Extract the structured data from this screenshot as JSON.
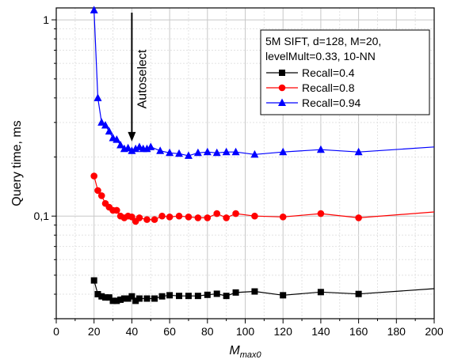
{
  "chart_data": {
    "type": "line",
    "xlabel": "M",
    "xlabel_sub": "max0",
    "ylabel": "Query time, ms",
    "xlim": [
      0,
      200
    ],
    "ylim": [
      0.03,
      1.15
    ],
    "y_scale": "log",
    "grid": true,
    "x_ticks": [
      0,
      20,
      40,
      60,
      80,
      100,
      120,
      140,
      160,
      180,
      200
    ],
    "x_tick_labels": [
      "0",
      "20",
      "40",
      "60",
      "80",
      "100",
      "120",
      "140",
      "160",
      "180",
      "200"
    ],
    "y_ticks": [
      0.1,
      1
    ],
    "y_tick_labels": [
      "0,1",
      "1"
    ],
    "legend": {
      "placement": "top-right",
      "header_line1": "5M SIFT, d=128, M=20,",
      "header_line2": "levelMult=0.33, 10-NN"
    },
    "annotation": {
      "text": "Autoselect",
      "x": 40,
      "y": 0.24
    },
    "series": [
      {
        "name": "Recall=0.4",
        "color": "#000000",
        "marker": "square",
        "x": [
          20,
          22,
          24,
          26,
          28,
          30,
          32,
          34,
          36,
          38,
          40,
          42,
          44,
          48,
          52,
          56,
          60,
          65,
          70,
          75,
          80,
          85,
          90,
          95,
          105,
          120,
          140,
          160
        ],
        "y": [
          0.047,
          0.04,
          0.039,
          0.0385,
          0.0385,
          0.037,
          0.037,
          0.0375,
          0.038,
          0.038,
          0.039,
          0.037,
          0.038,
          0.038,
          0.038,
          0.039,
          0.0395,
          0.0392,
          0.0392,
          0.0392,
          0.0397,
          0.0402,
          0.0392,
          0.0408,
          0.0413,
          0.0395,
          0.041,
          0.0401
        ],
        "line_x": [
          160,
          200
        ],
        "line_y": [
          0.0401,
          0.0427
        ]
      },
      {
        "name": "Recall=0.8",
        "color": "#ff0000",
        "marker": "circle",
        "x": [
          20,
          22,
          24,
          26,
          28,
          30,
          32,
          34,
          36,
          38,
          40,
          42,
          44,
          48,
          52,
          56,
          60,
          65,
          70,
          75,
          80,
          85,
          90,
          95,
          105,
          120,
          140,
          160
        ],
        "y": [
          0.16,
          0.135,
          0.127,
          0.116,
          0.111,
          0.107,
          0.107,
          0.1,
          0.098,
          0.1,
          0.099,
          0.094,
          0.098,
          0.096,
          0.096,
          0.1,
          0.099,
          0.1,
          0.099,
          0.098,
          0.098,
          0.103,
          0.098,
          0.103,
          0.1,
          0.099,
          0.103,
          0.098
        ],
        "line_x": [
          160,
          200
        ],
        "line_y": [
          0.098,
          0.105
        ]
      },
      {
        "name": "Recall=0.94",
        "color": "#0000ff",
        "marker": "triangle",
        "x": [
          20,
          22,
          24,
          26,
          28,
          30,
          32,
          34,
          36,
          38,
          40,
          42,
          44,
          46,
          48,
          50,
          55,
          60,
          65,
          70,
          75,
          80,
          85,
          90,
          95,
          105,
          120,
          140,
          160
        ],
        "y": [
          1.12,
          0.4,
          0.3,
          0.29,
          0.27,
          0.25,
          0.245,
          0.23,
          0.22,
          0.222,
          0.215,
          0.22,
          0.225,
          0.22,
          0.22,
          0.225,
          0.215,
          0.21,
          0.208,
          0.203,
          0.21,
          0.212,
          0.21,
          0.212,
          0.212,
          0.206,
          0.212,
          0.218,
          0.212
        ],
        "line_x": [
          160,
          200
        ],
        "line_y": [
          0.212,
          0.225
        ]
      }
    ]
  }
}
